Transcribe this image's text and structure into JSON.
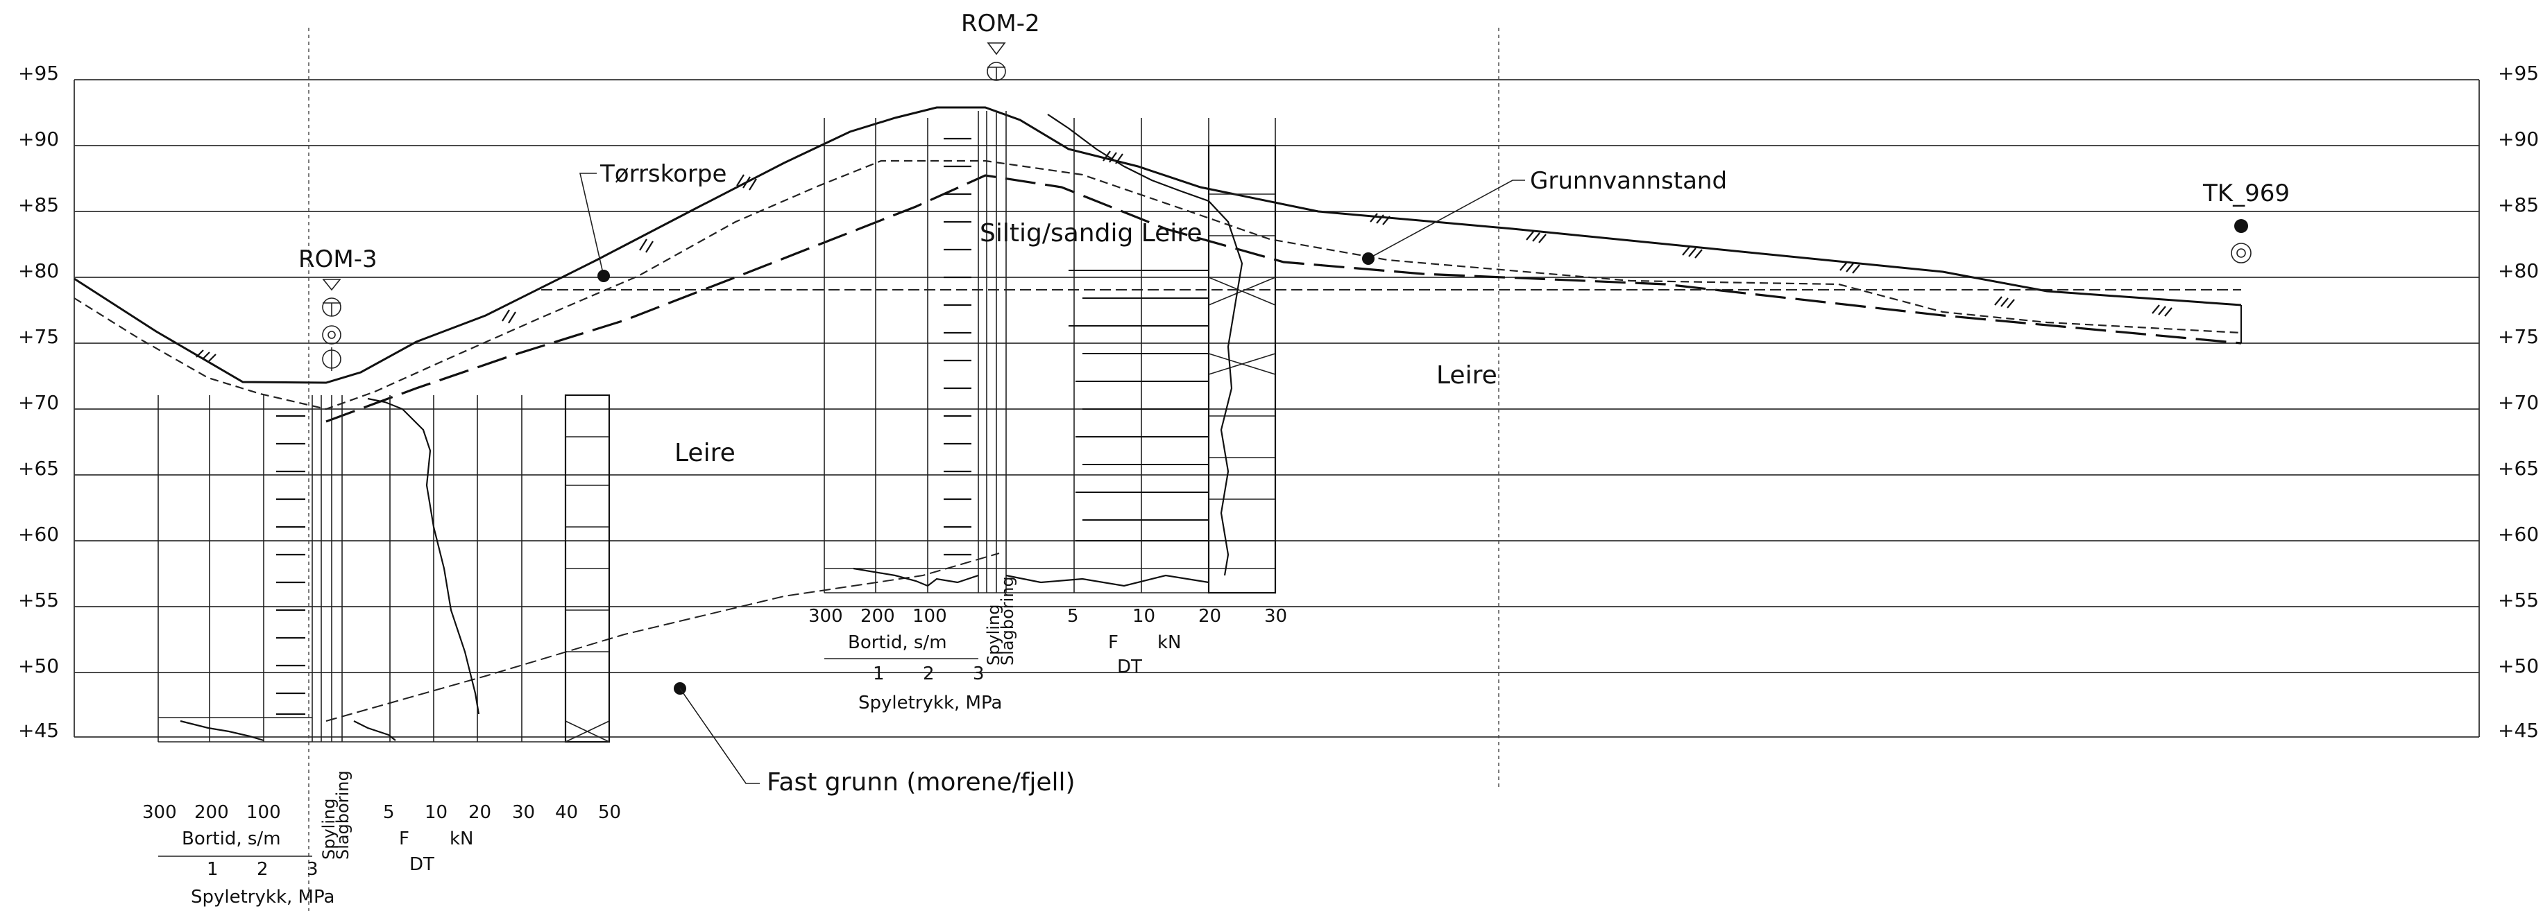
{
  "elevations": [
    "+95",
    "+90",
    "+85",
    "+80",
    "+75",
    "+70",
    "+65",
    "+60",
    "+55",
    "+50",
    "+45"
  ],
  "boreholes": {
    "rom3": {
      "name": "ROM-3"
    },
    "rom2": {
      "name": "ROM-2"
    },
    "tk969": {
      "name": "TK_969"
    }
  },
  "labels": {
    "torrskorpe": "Tørrskorpe",
    "grunnvannstand": "Grunnvannstand",
    "siltig": "Siltig/sandig Leire",
    "leire_left": "Leire",
    "leire_right": "Leire",
    "fast_grunn": "Fast grunn (morene/fjell)"
  },
  "log_axis": {
    "bortid_ticks": [
      "300",
      "200",
      "100"
    ],
    "bortid_label": "Bortid, s/m",
    "spyle_ticks": [
      "1",
      "2",
      "3"
    ],
    "spyle_label": "Spyletrykk, MPa",
    "spyling": "Spyling",
    "slagboring": "Slagboring",
    "f": "F",
    "kn": "kN",
    "dt": "DT",
    "rom3_force_ticks": [
      "5",
      "10",
      "20",
      "30",
      "40",
      "50"
    ],
    "rom2_force_ticks": [
      "5",
      "10",
      "20",
      "30"
    ]
  }
}
